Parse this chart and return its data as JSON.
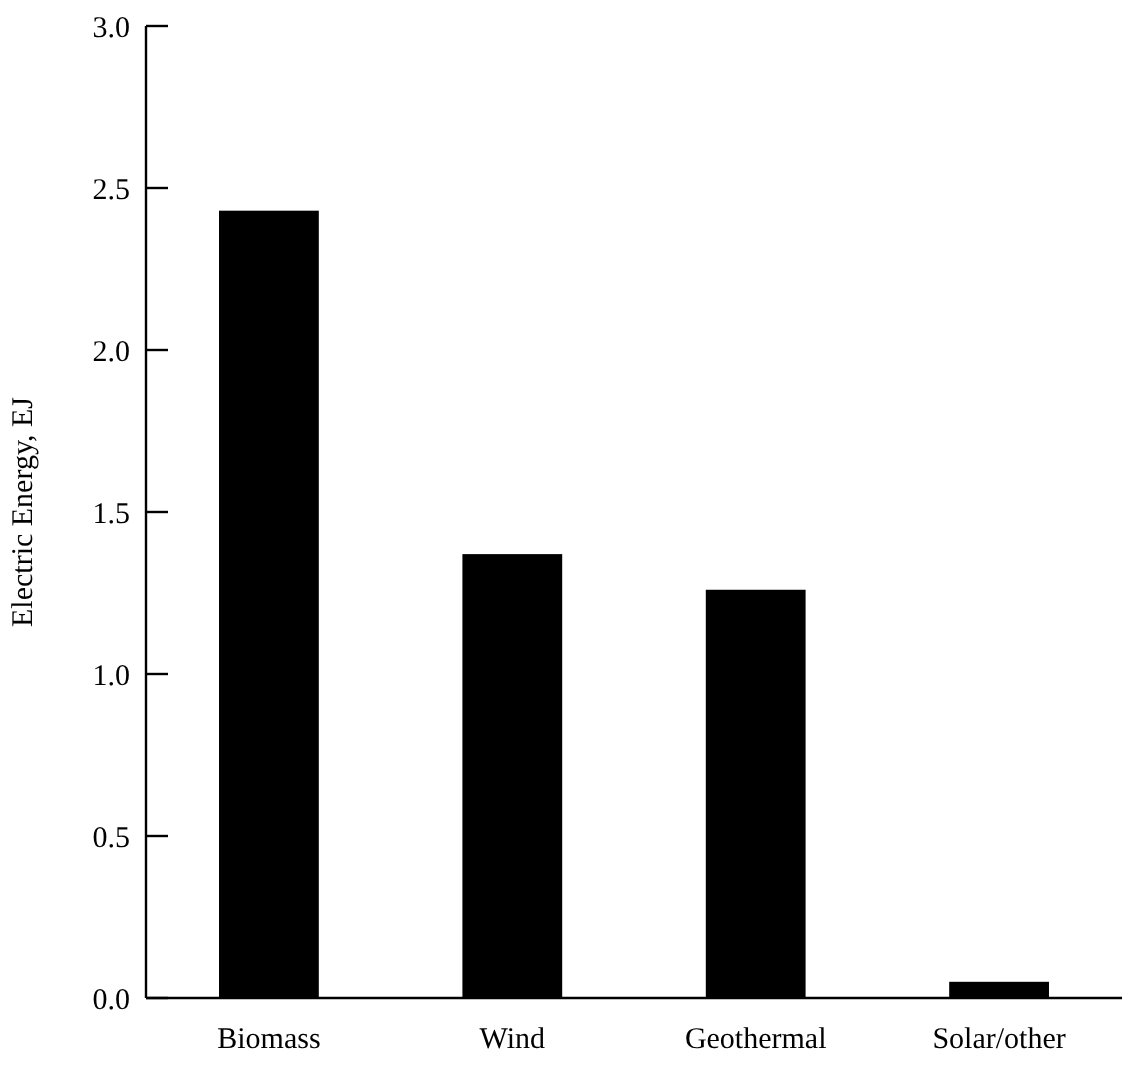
{
  "chart_data": {
    "type": "bar",
    "ylabel": "Electric Energy, EJ",
    "categories": [
      "Biomass",
      "Wind",
      "Geothermal",
      "Solar/other"
    ],
    "values": [
      2.43,
      1.37,
      1.26,
      0.05
    ],
    "color": "#000000",
    "ylim": [
      0,
      3
    ],
    "yticks": [
      {
        "value": 0,
        "label": "0.0"
      },
      {
        "value": 0.5,
        "label": "0.5"
      },
      {
        "value": 1,
        "label": "1.0"
      },
      {
        "value": 1.5,
        "label": "1.5"
      },
      {
        "value": 2,
        "label": "2.0"
      },
      {
        "value": 2.5,
        "label": "2.5"
      },
      {
        "value": 3,
        "label": "3.0"
      }
    ],
    "grid": false
  }
}
